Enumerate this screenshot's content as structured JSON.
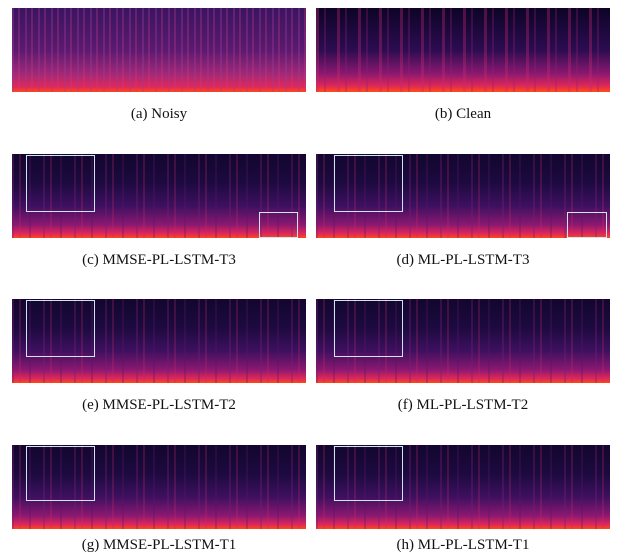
{
  "panels": [
    {
      "caption": "(a) Noisy"
    },
    {
      "caption": "(b) Clean"
    },
    {
      "caption": "(c) MMSE-PL-LSTM-T3"
    },
    {
      "caption": "(d) ML-PL-LSTM-T3"
    },
    {
      "caption": "(e) MMSE-PL-LSTM-T2"
    },
    {
      "caption": "(f) ML-PL-LSTM-T2"
    },
    {
      "caption": "(g) MMSE-PL-LSTM-T1"
    },
    {
      "caption": "(h) ML-PL-LSTM-T1"
    }
  ]
}
